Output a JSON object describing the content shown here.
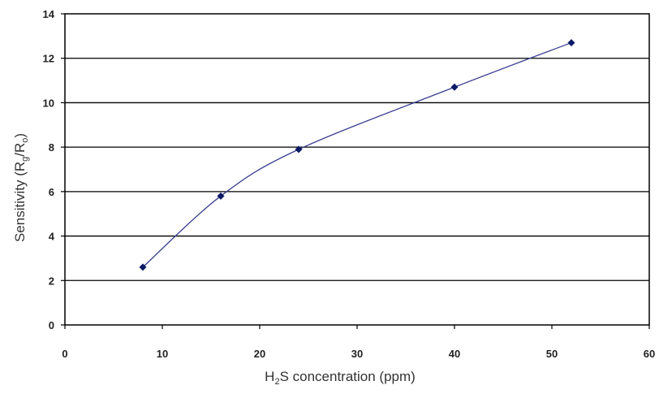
{
  "chart_data": {
    "type": "line",
    "title": "",
    "xlabel": {
      "main": "H",
      "sub": "2",
      "rest": "S concentration (ppm)"
    },
    "ylabel": {
      "main": "Sensitivity (R",
      "sub1": "g",
      "mid": "/R",
      "sub2": "o",
      "end": ")"
    },
    "xlim": [
      0,
      60
    ],
    "ylim": [
      0,
      14
    ],
    "xticks": [
      0,
      10,
      20,
      30,
      40,
      50,
      60
    ],
    "yticks": [
      0,
      2,
      4,
      6,
      8,
      10,
      12,
      14
    ],
    "grid": {
      "horizontal": true,
      "vertical": false
    },
    "legend": "none",
    "series": [
      {
        "x": [
          8,
          16,
          24,
          40,
          52
        ],
        "y": [
          2.6,
          5.8,
          7.9,
          10.7,
          12.7
        ],
        "line_color": "#3b3f8f",
        "marker_color": "#0b1a66",
        "marker": "diamond",
        "smooth": true
      }
    ]
  }
}
